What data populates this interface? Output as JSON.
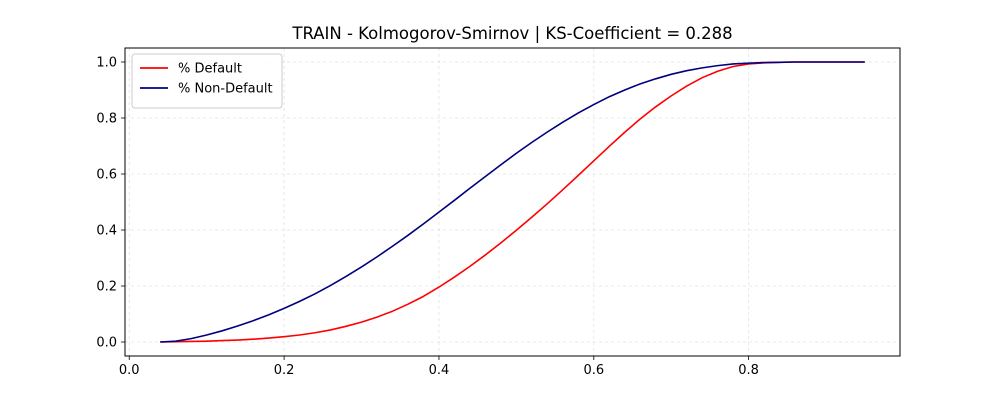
{
  "chart_data": {
    "type": "line",
    "title": "TRAIN - Kolmogorov-Smirnov | KS-Coefficient = 0.288",
    "xlabel": "",
    "ylabel": "",
    "xlim": [
      -0.0055,
      0.9955
    ],
    "ylim": [
      -0.05,
      1.05
    ],
    "xticks": [
      0.0,
      0.2,
      0.4,
      0.6,
      0.8
    ],
    "xtick_labels": [
      "0.0",
      "0.2",
      "0.4",
      "0.6",
      "0.8"
    ],
    "yticks": [
      0.0,
      0.2,
      0.4,
      0.6,
      0.8,
      1.0
    ],
    "ytick_labels": [
      "0.0",
      "0.2",
      "0.4",
      "0.6",
      "0.8",
      "1.0"
    ],
    "grid": true,
    "legend_position": "upper-left",
    "series": [
      {
        "name": "% Default",
        "color": "#ff0000",
        "x": [
          0.04,
          0.06,
          0.08,
          0.1,
          0.12,
          0.14,
          0.16,
          0.18,
          0.2,
          0.22,
          0.24,
          0.26,
          0.28,
          0.3,
          0.32,
          0.34,
          0.36,
          0.38,
          0.4,
          0.42,
          0.44,
          0.46,
          0.48,
          0.5,
          0.52,
          0.54,
          0.56,
          0.58,
          0.6,
          0.62,
          0.64,
          0.66,
          0.68,
          0.7,
          0.72,
          0.74,
          0.76,
          0.78,
          0.8,
          0.82,
          0.84,
          0.86,
          0.88,
          0.9,
          0.92,
          0.95
        ],
        "y": [
          0.0,
          0.001,
          0.002,
          0.003,
          0.005,
          0.007,
          0.01,
          0.014,
          0.019,
          0.025,
          0.033,
          0.043,
          0.056,
          0.071,
          0.089,
          0.11,
          0.135,
          0.163,
          0.196,
          0.232,
          0.27,
          0.311,
          0.354,
          0.399,
          0.446,
          0.494,
          0.544,
          0.595,
          0.647,
          0.699,
          0.749,
          0.797,
          0.84,
          0.879,
          0.914,
          0.944,
          0.967,
          0.984,
          0.993,
          0.997,
          0.999,
          1.0,
          1.0,
          1.0,
          1.0,
          1.0
        ]
      },
      {
        "name": "% Non-Default",
        "color": "#00007f",
        "x": [
          0.04,
          0.06,
          0.08,
          0.1,
          0.12,
          0.14,
          0.16,
          0.18,
          0.2,
          0.22,
          0.24,
          0.26,
          0.28,
          0.3,
          0.32,
          0.34,
          0.36,
          0.38,
          0.4,
          0.42,
          0.44,
          0.46,
          0.48,
          0.5,
          0.52,
          0.54,
          0.56,
          0.58,
          0.6,
          0.62,
          0.64,
          0.66,
          0.68,
          0.7,
          0.72,
          0.74,
          0.76,
          0.78,
          0.8,
          0.82,
          0.84,
          0.86,
          0.88,
          0.9,
          0.92,
          0.95
        ],
        "y": [
          0.0,
          0.003,
          0.012,
          0.025,
          0.04,
          0.057,
          0.076,
          0.097,
          0.12,
          0.145,
          0.172,
          0.202,
          0.234,
          0.268,
          0.304,
          0.342,
          0.381,
          0.422,
          0.464,
          0.506,
          0.549,
          0.591,
          0.633,
          0.674,
          0.713,
          0.75,
          0.785,
          0.818,
          0.848,
          0.876,
          0.9,
          0.922,
          0.94,
          0.956,
          0.969,
          0.979,
          0.987,
          0.993,
          0.996,
          0.998,
          0.999,
          1.0,
          1.0,
          1.0,
          1.0,
          1.0
        ]
      }
    ]
  }
}
